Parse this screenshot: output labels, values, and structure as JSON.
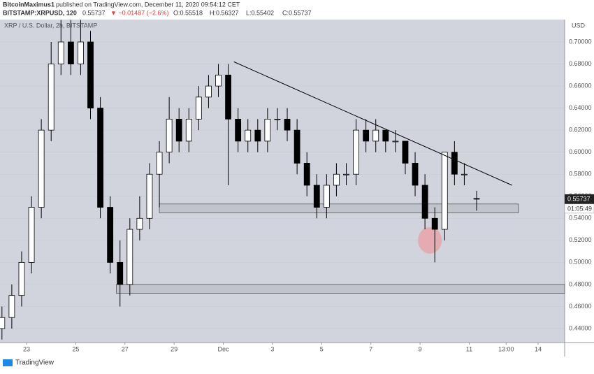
{
  "header": {
    "author": "BitcoinMaximus1",
    "published": "published on TradingView.com, December 11, 2020 09:54:12 CET",
    "symbol": "BITSTAMP:XRPUSD, 120",
    "last": "0.55737",
    "change": "▼ −0.01487 (−2.6%)",
    "open": "O:0.55518",
    "high": "H:0.56327",
    "low": "L:0.55402",
    "close": "C:0.55737"
  },
  "footer": {
    "brand": "TradingView"
  },
  "chart_data": {
    "type": "candlestick",
    "title": "XRP / U.S. Dollar, 2h, BITSTAMP",
    "y_axis_label": "USD",
    "x": [
      22.0,
      22.4,
      22.8,
      23.2,
      23.6,
      24.0,
      24.4,
      24.8,
      25.2,
      25.6,
      26.0,
      26.4,
      26.8,
      27.2,
      27.6,
      28.0,
      28.4,
      28.8,
      29.2,
      29.6,
      30.0,
      30.4,
      30.8,
      31.2,
      31.6,
      32.0,
      32.4,
      32.8,
      33.2,
      33.6,
      34.0,
      34.4,
      34.8,
      35.2,
      35.6,
      36.0,
      36.4,
      36.8,
      37.2,
      37.6,
      38.0,
      38.4,
      38.8,
      39.2,
      39.6,
      40.0,
      40.4,
      40.8,
      41.3
    ],
    "open": [
      0.44,
      0.45,
      0.47,
      0.5,
      0.55,
      0.62,
      0.68,
      0.7,
      0.68,
      0.7,
      0.64,
      0.55,
      0.5,
      0.48,
      0.53,
      0.54,
      0.58,
      0.6,
      0.63,
      0.61,
      0.63,
      0.65,
      0.66,
      0.67,
      0.63,
      0.61,
      0.62,
      0.61,
      0.63,
      0.63,
      0.62,
      0.59,
      0.57,
      0.55,
      0.57,
      0.58,
      0.58,
      0.62,
      0.61,
      0.62,
      0.61,
      0.61,
      0.59,
      0.57,
      0.54,
      0.53,
      0.6,
      0.58,
      0.558
    ],
    "high": [
      0.46,
      0.48,
      0.51,
      0.56,
      0.63,
      0.7,
      0.72,
      0.72,
      0.72,
      0.71,
      0.65,
      0.56,
      0.52,
      0.54,
      0.56,
      0.59,
      0.61,
      0.65,
      0.64,
      0.64,
      0.66,
      0.67,
      0.68,
      0.68,
      0.64,
      0.63,
      0.63,
      0.64,
      0.64,
      0.64,
      0.63,
      0.6,
      0.58,
      0.58,
      0.59,
      0.59,
      0.63,
      0.63,
      0.63,
      0.62,
      0.62,
      0.61,
      0.6,
      0.58,
      0.55,
      0.6,
      0.61,
      0.59,
      0.565
    ],
    "low": [
      0.43,
      0.44,
      0.46,
      0.49,
      0.54,
      0.61,
      0.67,
      0.67,
      0.67,
      0.63,
      0.54,
      0.49,
      0.46,
      0.47,
      0.52,
      0.53,
      0.55,
      0.59,
      0.6,
      0.6,
      0.62,
      0.64,
      0.65,
      0.57,
      0.6,
      0.6,
      0.6,
      0.6,
      0.62,
      0.61,
      0.58,
      0.56,
      0.54,
      0.54,
      0.56,
      0.57,
      0.57,
      0.6,
      0.6,
      0.6,
      0.6,
      0.58,
      0.56,
      0.53,
      0.5,
      0.52,
      0.57,
      0.57,
      0.547
    ],
    "close": [
      0.45,
      0.47,
      0.5,
      0.55,
      0.62,
      0.68,
      0.7,
      0.68,
      0.7,
      0.64,
      0.55,
      0.5,
      0.48,
      0.53,
      0.54,
      0.58,
      0.6,
      0.63,
      0.61,
      0.63,
      0.65,
      0.66,
      0.67,
      0.63,
      0.61,
      0.62,
      0.61,
      0.63,
      0.63,
      0.62,
      0.59,
      0.57,
      0.55,
      0.57,
      0.58,
      0.58,
      0.62,
      0.61,
      0.62,
      0.61,
      0.61,
      0.59,
      0.57,
      0.54,
      0.53,
      0.6,
      0.58,
      0.58,
      0.55737
    ],
    "up_color": "#ffffff",
    "down_color": "#000000",
    "background": "#d1d4dc",
    "xlim": [
      21.92,
      44.88
    ],
    "ylim": [
      0.4273,
      0.7203
    ],
    "xticks": [
      {
        "value": 23,
        "label": "23"
      },
      {
        "value": 25,
        "label": "25"
      },
      {
        "value": 27,
        "label": "27"
      },
      {
        "value": 29,
        "label": "29"
      },
      {
        "value": 31,
        "label": "Dec"
      },
      {
        "value": 33,
        "label": "3"
      },
      {
        "value": 35,
        "label": "5"
      },
      {
        "value": 37,
        "label": "7"
      },
      {
        "value": 39,
        "label": "9"
      },
      {
        "value": 41,
        "label": "11"
      },
      {
        "value": 42.5,
        "label": "13:00"
      },
      {
        "value": 43.8,
        "label": "14"
      }
    ],
    "yticks": [
      {
        "value": 0.44,
        "label": "0.44000"
      },
      {
        "value": 0.46,
        "label": "0.46000"
      },
      {
        "value": 0.48,
        "label": "0.48000"
      },
      {
        "value": 0.5,
        "label": "0.50000"
      },
      {
        "value": 0.52,
        "label": "0.52000"
      },
      {
        "value": 0.54,
        "label": "0.54000"
      },
      {
        "value": 0.56,
        "label": "0.56000"
      },
      {
        "value": 0.58,
        "label": "0.58000"
      },
      {
        "value": 0.6,
        "label": "0.60000"
      },
      {
        "value": 0.62,
        "label": "0.62000"
      },
      {
        "value": 0.64,
        "label": "0.64000"
      },
      {
        "value": 0.66,
        "label": "0.66000"
      },
      {
        "value": 0.68,
        "label": "0.68000"
      },
      {
        "value": 0.7,
        "label": "0.70000"
      }
    ],
    "last_price": {
      "value": 0.55737,
      "label": "0.55737"
    },
    "countdown": "01:05:49",
    "trendline": {
      "x": [
        31.43,
        42.74
      ],
      "y": [
        0.682,
        0.57
      ]
    },
    "zones": [
      {
        "x": [
          28.4,
          43.0
        ],
        "y": [
          0.545,
          0.553
        ]
      },
      {
        "x": [
          26.65,
          44.88
        ],
        "y": [
          0.472,
          0.48
        ]
      }
    ],
    "highlight": {
      "x": 39.4,
      "y": 0.52,
      "color": "#e8a0a8"
    }
  }
}
